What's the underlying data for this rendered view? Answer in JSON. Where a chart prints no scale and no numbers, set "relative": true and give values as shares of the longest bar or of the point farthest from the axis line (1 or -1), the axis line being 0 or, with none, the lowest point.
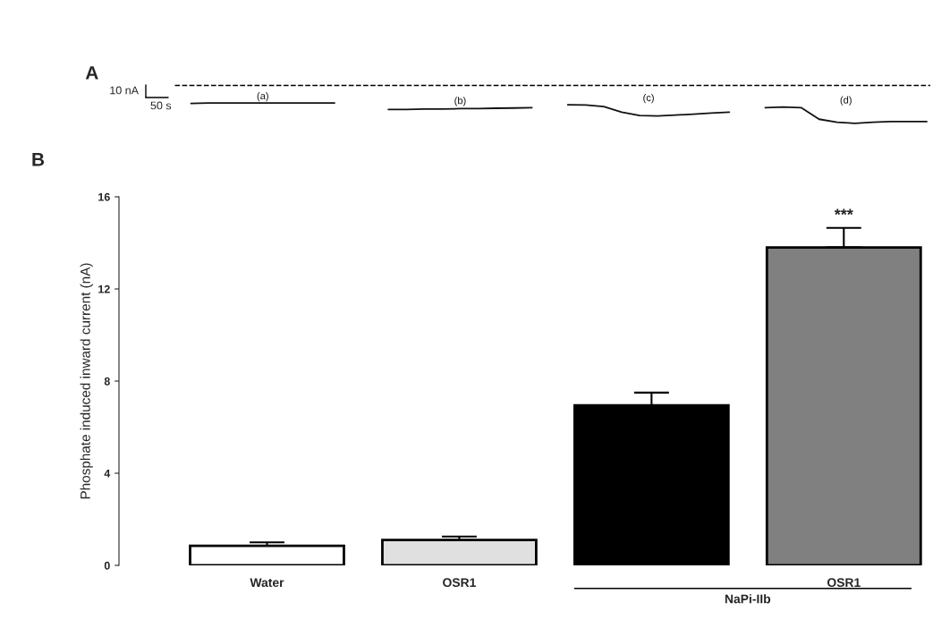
{
  "chart_data": [
    {
      "type": "line",
      "title": "A",
      "relative": true,
      "line_style": "solid",
      "marker": "none",
      "categories": [
        null,
        null,
        null,
        null,
        null,
        null,
        null,
        null,
        null,
        null,
        null,
        null,
        null,
        null,
        null,
        null,
        null,
        null,
        null,
        null,
        null,
        null,
        null,
        null,
        null,
        null,
        null,
        null,
        null,
        null,
        null,
        null,
        null,
        null,
        null,
        null,
        null,
        null,
        null,
        null,
        null,
        null
      ],
      "series": [
        {
          "name": "(a)",
          "color": "#111111",
          "values": [
            0.98,
            1,
            1,
            1,
            1,
            1,
            1,
            1,
            1,
            null,
            null,
            null,
            null,
            null,
            null,
            null,
            null,
            null,
            null,
            null,
            null,
            null,
            null,
            null,
            null,
            null,
            null,
            null,
            null,
            null,
            null,
            null,
            null,
            null,
            null,
            null,
            null,
            null,
            null,
            null,
            null,
            null
          ]
        },
        {
          "name": "(b)",
          "color": "#111111",
          "values": [
            null,
            null,
            null,
            null,
            null,
            null,
            null,
            null,
            null,
            null,
            null,
            0.68,
            0.68,
            0.7,
            0.7,
            0.72,
            0.72,
            0.74,
            0.75,
            0.77,
            null,
            null,
            null,
            null,
            null,
            null,
            null,
            null,
            null,
            null,
            null,
            null,
            null,
            null,
            null,
            null,
            null,
            null,
            null,
            null,
            null,
            null
          ]
        },
        {
          "name": "(c)",
          "color": "#111111",
          "values": [
            null,
            null,
            null,
            null,
            null,
            null,
            null,
            null,
            null,
            null,
            null,
            null,
            null,
            null,
            null,
            null,
            null,
            null,
            null,
            null,
            null,
            0.91,
            0.9,
            0.82,
            0.55,
            0.38,
            0.36,
            0.4,
            0.45,
            0.5,
            0.55,
            null,
            null,
            null,
            null,
            null,
            null,
            null,
            null,
            null,
            null,
            null
          ]
        },
        {
          "name": "(d)",
          "color": "#111111",
          "values": [
            null,
            null,
            null,
            null,
            null,
            null,
            null,
            null,
            null,
            null,
            null,
            null,
            null,
            null,
            null,
            null,
            null,
            null,
            null,
            null,
            null,
            null,
            null,
            null,
            null,
            null,
            null,
            null,
            null,
            null,
            null,
            null,
            0.77,
            0.8,
            0.77,
            0.2,
            0.05,
            0,
            0.05,
            0.08,
            0.08,
            0.08
          ]
        }
      ],
      "ref_lines": [
        {
          "axis": "y",
          "value": 1.86,
          "line_style": "dashed",
          "color": "#000000"
        }
      ],
      "annotations": [
        "10 nA",
        "50 s"
      ],
      "legend": false,
      "grid": false
    },
    {
      "type": "bar",
      "title": "B",
      "ylabel": "Phosphate induced inward current (nA)",
      "categories": [
        "Water",
        "OSR1",
        null,
        "OSR1"
      ],
      "values": [
        0.85,
        1.1,
        6.95,
        13.8
      ],
      "errors": [
        0.15,
        0.15,
        0.55,
        0.85
      ],
      "colors": [
        "#ffffff",
        "#e0e0e0",
        "#000000",
        "#808080"
      ],
      "ylim": [
        0,
        16
      ],
      "yticks": [
        0,
        4,
        8,
        12,
        16
      ],
      "annotations": [
        "***",
        "NaPi-IIb"
      ],
      "grid": false,
      "legend": false
    }
  ]
}
